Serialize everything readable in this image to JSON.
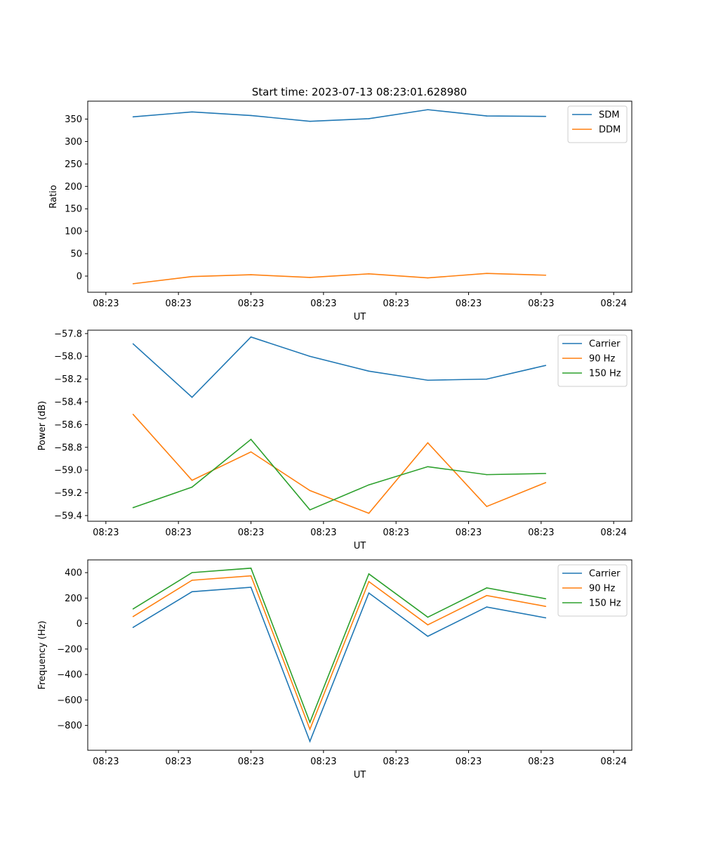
{
  "figure_title": "Start time: 2023-07-13 08:23:01.628980",
  "colors": {
    "blue": "#1f77b4",
    "orange": "#ff7f0e",
    "green": "#2ca02c"
  },
  "chart_data": [
    {
      "type": "line",
      "ylabel": "Ratio",
      "xlabel": "UT",
      "x_tick_labels": [
        "08:23",
        "08:23",
        "08:23",
        "08:23",
        "08:23",
        "08:23",
        "08:23"
      ],
      "x_last_tick_label": "08:24",
      "x": [
        0.5,
        1.15,
        1.8,
        2.45,
        3.1,
        3.75,
        4.4,
        5.05
      ],
      "xlim": [
        0,
        6
      ],
      "ylim": [
        -36,
        390
      ],
      "yticks": [
        0,
        50,
        100,
        150,
        200,
        250,
        300,
        350
      ],
      "legend_position": "top-right",
      "series": [
        {
          "name": "SDM",
          "color": "#1f77b4",
          "values": [
            355,
            366,
            358,
            345,
            351,
            371,
            357,
            356
          ]
        },
        {
          "name": "DDM",
          "color": "#ff7f0e",
          "values": [
            -17,
            -1,
            3,
            -3,
            5,
            -4,
            6,
            2
          ]
        }
      ]
    },
    {
      "type": "line",
      "ylabel": "Power (dB)",
      "xlabel": "UT",
      "x_tick_labels": [
        "08:23",
        "08:23",
        "08:23",
        "08:23",
        "08:23",
        "08:23",
        "08:23"
      ],
      "x_last_tick_label": "08:24",
      "x": [
        0.5,
        1.15,
        1.8,
        2.45,
        3.1,
        3.75,
        4.4,
        5.05
      ],
      "xlim": [
        0,
        6
      ],
      "ylim": [
        -59.45,
        -57.77
      ],
      "yticks": [
        -59.4,
        -59.2,
        -59.0,
        -58.8,
        -58.6,
        -58.4,
        -58.2,
        -58.0,
        -57.8
      ],
      "ytick_labels": [
        "−59.4",
        "−59.2",
        "−59.0",
        "−58.8",
        "−58.6",
        "−58.4",
        "−58.2",
        "−58.0",
        "−57.8"
      ],
      "legend_position": "top-right",
      "series": [
        {
          "name": "Carrier",
          "color": "#1f77b4",
          "values": [
            -57.89,
            -58.36,
            -57.83,
            -58.0,
            -58.13,
            -58.21,
            -58.2,
            -58.08
          ]
        },
        {
          "name": "90 Hz",
          "color": "#ff7f0e",
          "values": [
            -58.51,
            -59.09,
            -58.84,
            -59.18,
            -59.38,
            -58.76,
            -59.32,
            -59.11
          ]
        },
        {
          "name": "150 Hz",
          "color": "#2ca02c",
          "values": [
            -59.33,
            -59.15,
            -58.73,
            -59.35,
            -59.13,
            -58.97,
            -59.04,
            -59.03
          ]
        }
      ]
    },
    {
      "type": "line",
      "ylabel": "Frequency (Hz)",
      "xlabel": "UT",
      "x_tick_labels": [
        "08:23",
        "08:23",
        "08:23",
        "08:23",
        "08:23",
        "08:23",
        "08:23"
      ],
      "x_last_tick_label": "08:24",
      "x": [
        0.5,
        1.15,
        1.8,
        2.45,
        3.1,
        3.75,
        4.4,
        5.05
      ],
      "xlim": [
        0,
        6
      ],
      "ylim": [
        -995,
        500
      ],
      "yticks": [
        -800,
        -600,
        -400,
        -200,
        0,
        200,
        400
      ],
      "ytick_labels": [
        "−800",
        "−600",
        "−400",
        "−200",
        "0",
        "200",
        "400"
      ],
      "legend_position": "top-right",
      "series": [
        {
          "name": "Carrier",
          "color": "#1f77b4",
          "values": [
            -30,
            250,
            285,
            -925,
            240,
            -100,
            130,
            45
          ]
        },
        {
          "name": "90 Hz",
          "color": "#ff7f0e",
          "values": [
            55,
            340,
            375,
            -830,
            330,
            -10,
            220,
            135
          ]
        },
        {
          "name": "150 Hz",
          "color": "#2ca02c",
          "values": [
            115,
            400,
            435,
            -775,
            390,
            50,
            280,
            195
          ]
        }
      ]
    }
  ]
}
